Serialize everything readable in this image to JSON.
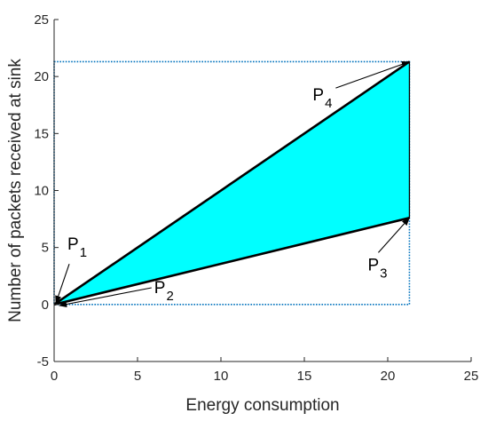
{
  "chart_data": {
    "type": "area",
    "title": "",
    "xlabel": "Energy consumption",
    "ylabel": "Number of packets received at sink",
    "xlim": [
      0,
      25
    ],
    "ylim": [
      -5,
      25
    ],
    "xticks": [
      "0",
      "5",
      "10",
      "15",
      "20",
      "25"
    ],
    "yticks": [
      "-5",
      "0",
      "5",
      "10",
      "15",
      "20",
      "25"
    ],
    "grid": false,
    "colors": {
      "fill": "#00ffff",
      "edge": "#000000",
      "box": "#0072bd",
      "axis": "#262626"
    },
    "points": [
      {
        "name": "P",
        "sub": "1",
        "x": 0.1,
        "y": 0.1,
        "label_x": 0.8,
        "label_y": 4.8
      },
      {
        "name": "P",
        "sub": "2",
        "x": 0.3,
        "y": -0.1,
        "label_x": 6.0,
        "label_y": 1.0
      },
      {
        "name": "P",
        "sub": "3",
        "x": 21.3,
        "y": 7.6,
        "label_x": 18.8,
        "label_y": 3.0
      },
      {
        "name": "P",
        "sub": "4",
        "x": 21.3,
        "y": 21.3,
        "label_x": 15.5,
        "label_y": 17.9
      }
    ],
    "polygon": [
      [
        0,
        0
      ],
      [
        21.3,
        21.3
      ],
      [
        21.3,
        7.6
      ]
    ],
    "bounding_box": {
      "x_range": [
        0,
        21.3
      ],
      "y_range": [
        0,
        21.3
      ]
    }
  }
}
